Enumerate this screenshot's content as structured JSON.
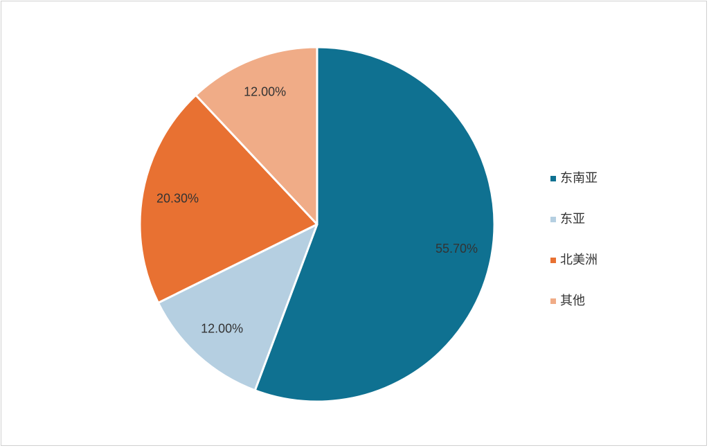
{
  "chart_data": {
    "type": "pie",
    "title": "",
    "legend_position": "right",
    "slices": [
      {
        "label": "东南亚",
        "value": 55.7,
        "display": "55.70%",
        "color": "#0f7191",
        "label_color": "#ffffff"
      },
      {
        "label": "东亚",
        "value": 12.0,
        "display": "12.00%",
        "color": "#b5cfe1",
        "label_color": "#333333"
      },
      {
        "label": "北美洲",
        "value": 20.3,
        "display": "20.30%",
        "color": "#e87132",
        "label_color": "#333333"
      },
      {
        "label": "其他",
        "value": 12.0,
        "display": "12.00%",
        "color": "#f0ac87",
        "label_color": "#333333"
      }
    ]
  }
}
